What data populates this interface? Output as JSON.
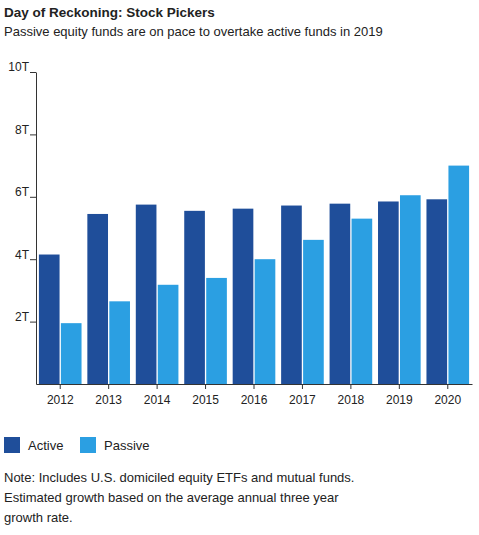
{
  "chart_data": {
    "type": "bar",
    "title": "Day of Reckoning: Stock Pickers",
    "subtitle": "Passive equity funds are on pace to overtake active funds in 2019",
    "categories": [
      "2012",
      "2013",
      "2014",
      "2015",
      "2016",
      "2017",
      "2018",
      "2019",
      "2020"
    ],
    "series": [
      {
        "name": "Active",
        "color": "#1f4e9a",
        "values": [
          4.15,
          5.45,
          5.75,
          5.55,
          5.62,
          5.72,
          5.78,
          5.85,
          5.92
        ]
      },
      {
        "name": "Passive",
        "color": "#2b9fe2",
        "values": [
          1.95,
          2.65,
          3.18,
          3.4,
          4.0,
          4.62,
          5.3,
          6.05,
          7.0
        ]
      }
    ],
    "ylim": [
      0,
      10
    ],
    "yticks": [
      {
        "value": 2,
        "label": "2T"
      },
      {
        "value": 4,
        "label": "4T"
      },
      {
        "value": 6,
        "label": "6T"
      },
      {
        "value": 8,
        "label": "8T"
      },
      {
        "value": 10,
        "label": "10T"
      }
    ],
    "grid": false,
    "legend": "bottom",
    "annotations": [
      "Note: Includes U.S. domiciled equity ETFs and mutual funds.",
      "Estimated growth based on the average annual three year",
      "growth rate."
    ]
  }
}
